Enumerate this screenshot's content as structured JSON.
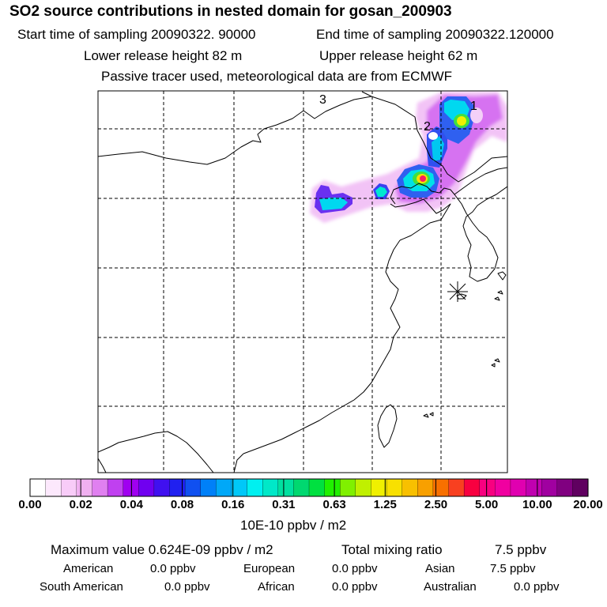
{
  "title": "SO2 source contributions in nested domain for gosan_200903",
  "header": {
    "start_label": "Start time of sampling 20090322. 90000",
    "end_label": "End time of sampling 20090322.120000",
    "lower_label": "Lower release height   82 m",
    "upper_label": "Upper release height   62 m",
    "info": "Passive tracer used, meteorological data are from ECMWF"
  },
  "map": {
    "source_labels": [
      "1",
      "2",
      "3"
    ],
    "receptor": "gosan-receptor-star"
  },
  "colorbar": {
    "ticks": [
      "0.00",
      "0.02",
      "0.04",
      "0.08",
      "0.16",
      "0.31",
      "0.63",
      "1.25",
      "2.50",
      "5.00",
      "10.00",
      "20.00"
    ],
    "unit": "10E-10 ppbv / m2",
    "colors": [
      "#ffffff",
      "#fce8fc",
      "#f8ccf8",
      "#f0b0f0",
      "#e080f0",
      "#c040f0",
      "#a000f0",
      "#7000f0",
      "#4010f0",
      "#2020f0",
      "#1050f0",
      "#0080f8",
      "#00a8f8",
      "#00c8f8",
      "#00f0f0",
      "#00e8c8",
      "#00e0a0",
      "#00d870",
      "#00e040",
      "#20f000",
      "#80f000",
      "#c0f000",
      "#f0f000",
      "#f8e000",
      "#f8c000",
      "#f8a000",
      "#f87000",
      "#f84020",
      "#f80040",
      "#f80080",
      "#f000a0",
      "#e000b0",
      "#c000b0",
      "#a000a0",
      "#800080",
      "#600060"
    ]
  },
  "stats": {
    "max_label": "Maximum value  0.624E-09 ppbv / m2",
    "total_label": "Total mixing ratio",
    "total_value": "7.5 ppbv",
    "american_label": "American",
    "american_value": "0.0 ppbv",
    "european_label": "European",
    "european_value": "0.0 ppbv",
    "asian_label": "Asian",
    "asian_value": "7.5 ppbv",
    "south_american_label": "South American",
    "south_american_value": "0.0 ppbv",
    "african_label": "African",
    "african_value": "0.0 ppbv",
    "australian_label": "Australian",
    "australian_value": "0.0 ppbv"
  }
}
